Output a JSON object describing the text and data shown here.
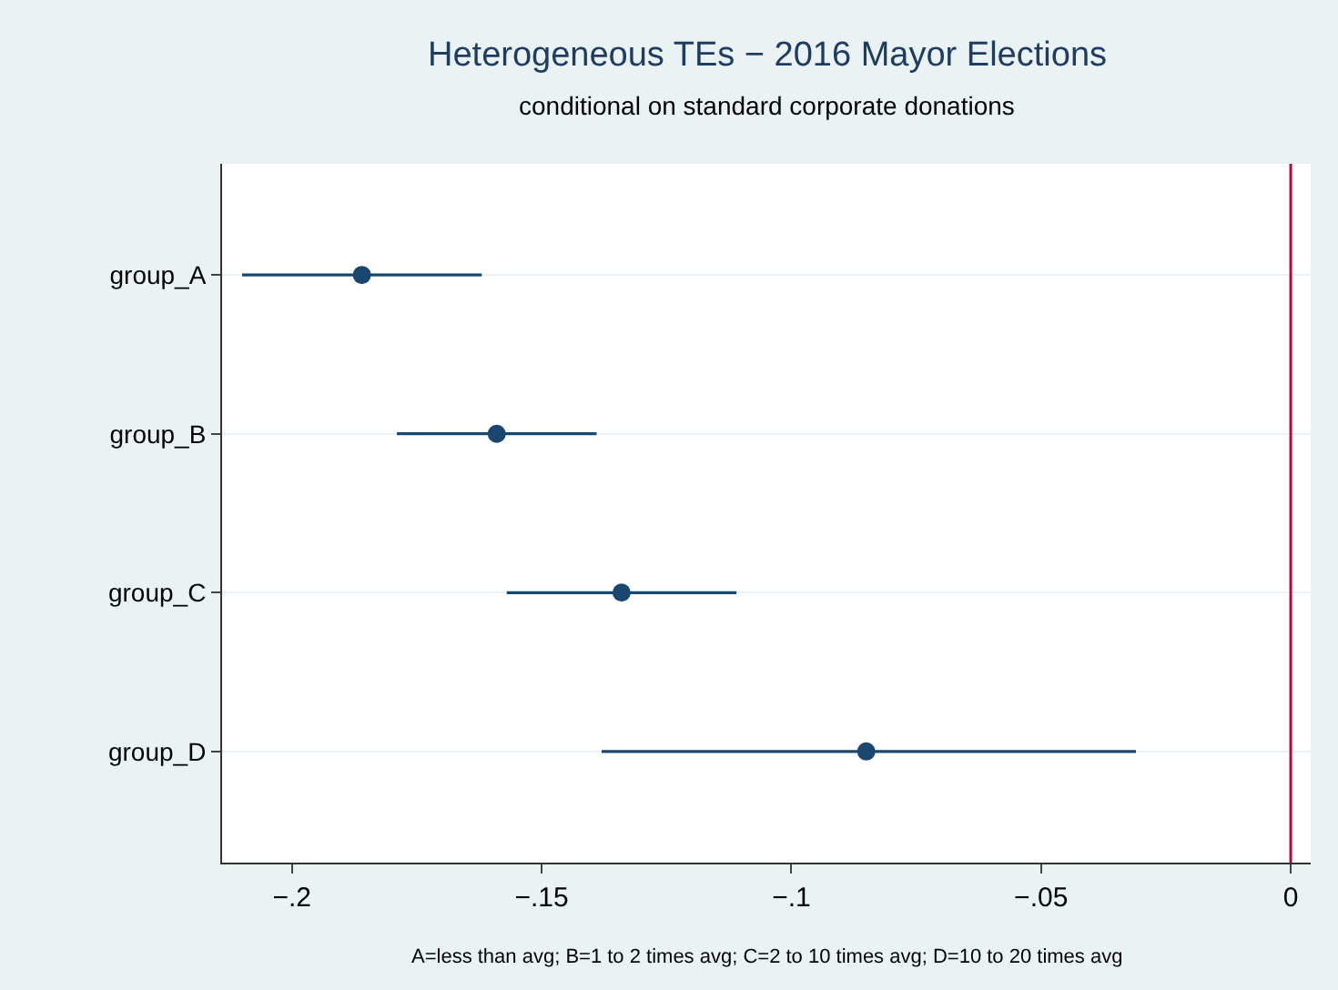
{
  "chart_data": {
    "type": "scatter",
    "orientation": "horizontal",
    "title": "Heterogeneous TEs − 2016 Mayor Elections",
    "subtitle": "conditional on standard corporate donations",
    "categories": [
      "group_A",
      "group_B",
      "group_C",
      "group_D"
    ],
    "values": [
      -0.186,
      -0.159,
      -0.134,
      -0.085
    ],
    "errors": [
      [
        -0.21,
        -0.162
      ],
      [
        -0.179,
        -0.139
      ],
      [
        -0.157,
        -0.111
      ],
      [
        -0.138,
        -0.031
      ]
    ],
    "color": "#1a476f",
    "marker": "circle",
    "xlim": [
      -0.214,
      0.004
    ],
    "xticks": [
      {
        "value": -0.2,
        "label": "−.2"
      },
      {
        "value": -0.15,
        "label": "−.15"
      },
      {
        "value": -0.1,
        "label": "−.1"
      },
      {
        "value": -0.05,
        "label": "−.05"
      },
      0
    ],
    "grid": "y",
    "ref_lines": [
      {
        "axis": "x",
        "value": 0,
        "label": null,
        "color": "#c10534"
      }
    ],
    "annotations": [
      "A=less than avg; B=1 to 2 times avg; C=2 to 10 times avg; D=10 to 20 times avg"
    ]
  }
}
